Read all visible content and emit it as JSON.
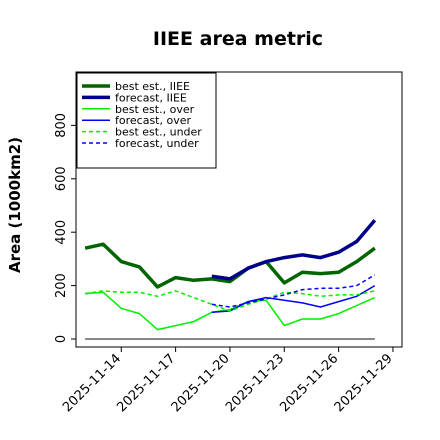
{
  "chart_data": {
    "type": "line",
    "title": "IIEE area metric",
    "xlabel": "",
    "ylabel": "Area (1000km2)",
    "ylim": [
      -30,
      1000
    ],
    "yticks": [
      0,
      200,
      400,
      600,
      800
    ],
    "x": [
      "2025-11-12",
      "2025-11-13",
      "2025-11-14",
      "2025-11-15",
      "2025-11-16",
      "2025-11-17",
      "2025-11-18",
      "2025-11-19",
      "2025-11-20",
      "2025-11-21",
      "2025-11-22",
      "2025-11-23",
      "2025-11-24",
      "2025-11-25",
      "2025-11-26",
      "2025-11-27",
      "2025-11-28",
      "2025-11-29"
    ],
    "xtick_labels": [
      "2025-11-14",
      "2025-11-17",
      "2025-11-20",
      "2025-11-23",
      "2025-11-26",
      "2025-11-29"
    ],
    "highlighted_tick": "2025-11-20",
    "highlight_color": "#2e8b2e",
    "series": [
      {
        "name": "best est., IIEE",
        "color": "#006400",
        "width": 3.5,
        "dash": "solid",
        "values": [
          340,
          355,
          290,
          270,
          195,
          230,
          220,
          225,
          215,
          265,
          290,
          210,
          250,
          245,
          250,
          290,
          340,
          null
        ]
      },
      {
        "name": "forecast, IIEE",
        "color": "#00008b",
        "width": 3.5,
        "dash": "solid",
        "values": [
          null,
          null,
          null,
          null,
          null,
          null,
          null,
          235,
          225,
          265,
          290,
          305,
          315,
          305,
          325,
          365,
          445,
          null
        ]
      },
      {
        "name": "best est., over",
        "color": "#00ee00",
        "width": 1.5,
        "dash": "solid",
        "values": [
          170,
          175,
          115,
          95,
          35,
          50,
          65,
          100,
          110,
          140,
          145,
          50,
          75,
          75,
          95,
          125,
          155,
          null
        ]
      },
      {
        "name": "forecast, over",
        "color": "#0000ff",
        "width": 1.5,
        "dash": "solid",
        "values": [
          null,
          null,
          null,
          null,
          null,
          null,
          null,
          100,
          105,
          140,
          155,
          145,
          135,
          120,
          140,
          160,
          200,
          null
        ]
      },
      {
        "name": "best est., under",
        "color": "#00ee00",
        "width": 1.5,
        "dash": "dashed",
        "values": [
          170,
          180,
          175,
          175,
          160,
          180,
          155,
          130,
          105,
          130,
          150,
          175,
          170,
          160,
          165,
          165,
          180,
          null
        ]
      },
      {
        "name": "forecast, under",
        "color": "#0000ff",
        "width": 1.5,
        "dash": "dashed",
        "values": [
          null,
          null,
          null,
          null,
          null,
          null,
          null,
          130,
          120,
          135,
          150,
          165,
          185,
          190,
          190,
          200,
          240,
          null
        ]
      },
      {
        "name": "",
        "color": "#606060",
        "width": 1.5,
        "dash": "solid",
        "values": [
          0,
          0,
          0,
          0,
          0,
          0,
          0,
          0,
          0,
          0,
          0,
          0,
          0,
          0,
          0,
          0,
          0,
          null
        ]
      }
    ],
    "legend_position": "top-left",
    "grid": false
  }
}
